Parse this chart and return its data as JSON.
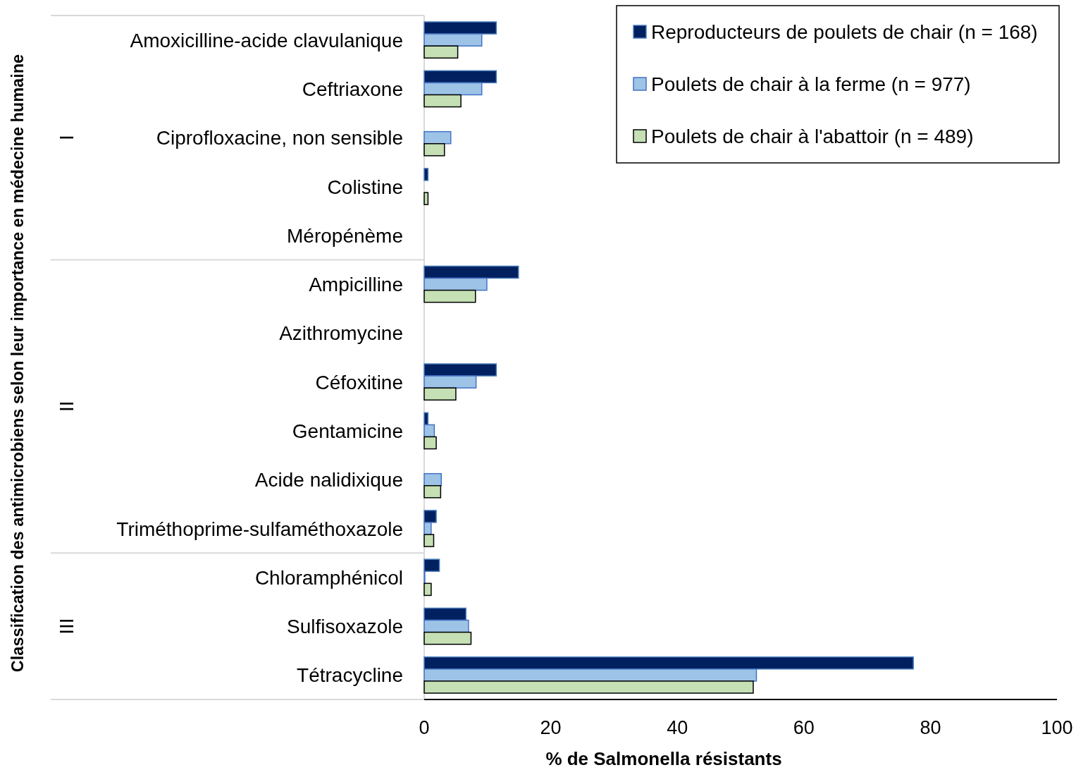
{
  "chart_data": {
    "type": "bar",
    "orientation": "horizontal",
    "xlabel": "% de Salmonella résistants",
    "categories": [
      "Amoxicilline-acide clavulanique",
      "Ceftriaxone",
      "Ciprofloxacine, non sensible",
      "Colistine",
      "Méropénème",
      "Ampicilline",
      "Azithromycine",
      "Céfoxitine",
      "Gentamicine",
      "Acide nalidixique",
      "Triméthoprime-sulfaméthoxazole",
      "Chloramphénicol",
      "Sulfisoxazole",
      "Tétracycline"
    ],
    "series": [
      {
        "name": "Reproducteurs de poulets de chair (n = 168)",
        "color": "#002060",
        "values": [
          11.4,
          11.4,
          0,
          0.6,
          0,
          14.9,
          0,
          11.4,
          0.6,
          0,
          1.9,
          2.4,
          6.6,
          77.3
        ]
      },
      {
        "name": "Poulets de chair à la ferme (n = 977)",
        "color": "#9dc3e6",
        "values": [
          9.1,
          9.1,
          4.2,
          0,
          0,
          9.9,
          0,
          8.2,
          1.6,
          2.7,
          1.1,
          0.1,
          7.0,
          52.5
        ]
      },
      {
        "name": "Poulets de chair à l'abattoir (n = 489)",
        "color": "#c5e0b4",
        "values": [
          5.3,
          5.8,
          3.2,
          0.6,
          0,
          8.1,
          0,
          5.0,
          1.9,
          2.6,
          1.5,
          1.1,
          7.4,
          52.0
        ]
      }
    ],
    "xlim": [
      0,
      100
    ],
    "xticks": [
      0,
      20,
      40,
      60,
      80,
      100
    ],
    "annotations": [
      "Classification des antimicrobiens selon leur importance en médecine humaine",
      "I",
      "II",
      "III"
    ],
    "legend": "top right"
  }
}
